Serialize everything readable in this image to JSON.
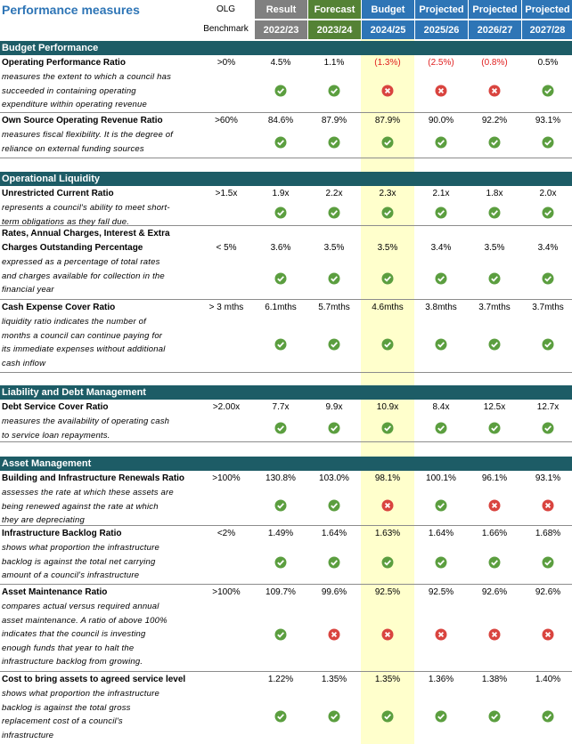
{
  "header": {
    "title": "Performance measures",
    "benchmark": [
      "OLG",
      "Benchmark"
    ],
    "columns": [
      {
        "label": "Result",
        "period": "2022/23",
        "color": "#808080"
      },
      {
        "label": "Forecast",
        "period": "2023/24",
        "color": "#548235"
      },
      {
        "label": "Budget",
        "period": "2024/25",
        "color": "#2e75b6"
      },
      {
        "label": "Projected",
        "period": "2025/26",
        "color": "#2e75b6"
      },
      {
        "label": "Projected",
        "period": "2026/27",
        "color": "#2e75b6"
      },
      {
        "label": "Projected",
        "period": "2027/28",
        "color": "#2e75b6"
      }
    ]
  },
  "sections": [
    {
      "title": "Budget Performance",
      "rows": [
        {
          "name": [
            "Operating Performance Ratio"
          ],
          "description": [
            "measures the extent to which a council has",
            "succeeded in containing operating",
            "expenditure within operating revenue"
          ],
          "benchmark": ">0%",
          "values": [
            "4.5%",
            "1.1%",
            "(1.3%)",
            "(2.5%)",
            "(0.8%)",
            "0.5%"
          ],
          "met": [
            true,
            true,
            false,
            false,
            false,
            true
          ]
        },
        {
          "name": [
            "Own Source Operating Revenue Ratio"
          ],
          "description": [
            "measures fiscal flexibility. It is the degree of",
            "reliance on external funding sources"
          ],
          "benchmark": ">60%",
          "values": [
            "84.6%",
            "87.9%",
            "87.9%",
            "90.0%",
            "92.2%",
            "93.1%"
          ],
          "met": [
            true,
            true,
            true,
            true,
            true,
            true
          ]
        }
      ]
    },
    {
      "title": "Operational Liquidity",
      "rows": [
        {
          "name": [
            "Unrestricted Current Ratio"
          ],
          "description": [
            "represents a council's ability to meet short-",
            "term obligations as they fall due."
          ],
          "benchmark": ">1.5x",
          "values": [
            "1.9x",
            "2.2x",
            "2.3x",
            "2.1x",
            "1.8x",
            "2.0x"
          ],
          "met": [
            true,
            true,
            true,
            true,
            true,
            true
          ]
        },
        {
          "name": [
            "Rates, Annual Charges, Interest & Extra",
            "Charges Outstanding Percentage"
          ],
          "description": [
            "expressed as a percentage of total rates",
            "and charges available for collection in the",
            "financial year"
          ],
          "benchmark": "< 5%",
          "values": [
            "3.6%",
            "3.5%",
            "3.5%",
            "3.4%",
            "3.5%",
            "3.4%"
          ],
          "met": [
            true,
            true,
            true,
            true,
            true,
            true
          ]
        },
        {
          "name": [
            "Cash Expense Cover Ratio"
          ],
          "description": [
            "liquidity ratio indicates the number of",
            "months a council can continue paying for",
            "its immediate expenses without additional",
            "cash inflow"
          ],
          "benchmark": "> 3 mths",
          "values": [
            "6.1mths",
            "5.7mths",
            "4.6mths",
            "3.8mths",
            "3.7mths",
            "3.7mths"
          ],
          "met": [
            true,
            true,
            true,
            true,
            true,
            true
          ]
        }
      ]
    },
    {
      "title": "Liability and Debt Management",
      "rows": [
        {
          "name": [
            "Debt Service Cover Ratio"
          ],
          "description": [
            "measures the availability of operating cash",
            "to service loan repayments."
          ],
          "benchmark": ">2.00x",
          "values": [
            "7.7x",
            "9.9x",
            "10.9x",
            "8.4x",
            "12.5x",
            "12.7x"
          ],
          "met": [
            true,
            true,
            true,
            true,
            true,
            true
          ]
        }
      ]
    },
    {
      "title": "Asset Management",
      "rows": [
        {
          "name": [
            "Building and Infrastructure Renewals Ratio"
          ],
          "description": [
            "assesses the rate at which these assets are",
            "being renewed against the rate at which",
            "they are depreciating"
          ],
          "benchmark": ">100%",
          "values": [
            "130.8%",
            "103.0%",
            "98.1%",
            "100.1%",
            "96.1%",
            "93.1%"
          ],
          "met": [
            true,
            true,
            false,
            true,
            false,
            false
          ]
        },
        {
          "name": [
            "Infrastructure Backlog Ratio"
          ],
          "description": [
            "shows what proportion the infrastructure",
            "backlog is against the total net carrying",
            "amount of a council's infrastructure"
          ],
          "benchmark": "<2%",
          "values": [
            "1.49%",
            "1.64%",
            "1.63%",
            "1.64%",
            "1.66%",
            "1.68%"
          ],
          "met": [
            true,
            true,
            true,
            true,
            true,
            true
          ]
        },
        {
          "name": [
            "Asset Maintenance Ratio"
          ],
          "description": [
            "compares actual versus required annual",
            "asset maintenance. A ratio of above 100%",
            "indicates that the council is investing",
            "enough funds that year to halt the",
            "infrastructure backlog from growing."
          ],
          "benchmark": ">100%",
          "values": [
            "109.7%",
            "99.6%",
            "92.5%",
            "92.5%",
            "92.6%",
            "92.6%"
          ],
          "met": [
            true,
            false,
            false,
            false,
            false,
            false
          ]
        },
        {
          "name": [
            "Cost to bring assets to agreed service level"
          ],
          "description": [
            "shows what proportion the infrastructure",
            "backlog is against the total gross",
            "replacement cost of a council's",
            "infrastructure"
          ],
          "benchmark": null,
          "values": [
            "1.22%",
            "1.35%",
            "1.35%",
            "1.36%",
            "1.38%",
            "1.40%"
          ],
          "met": [
            true,
            true,
            true,
            true,
            true,
            true
          ]
        }
      ]
    }
  ]
}
